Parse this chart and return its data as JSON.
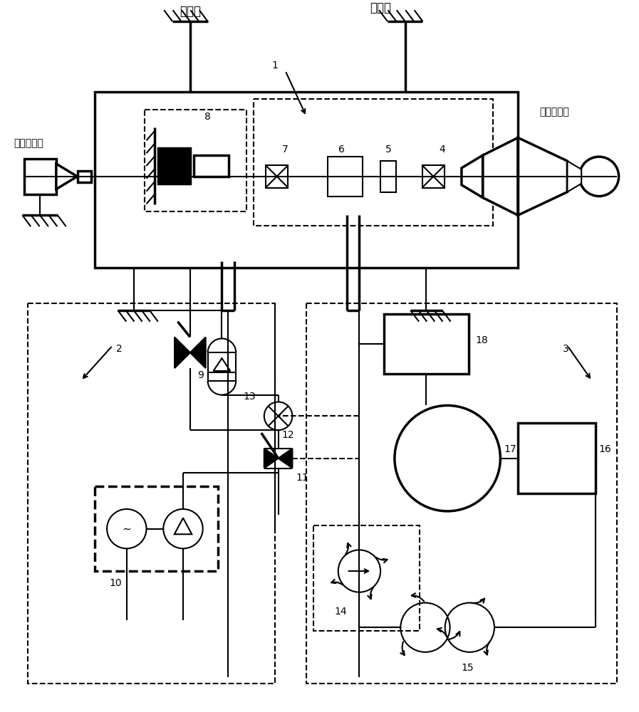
{
  "bg_color": "#ffffff",
  "line_color": "#000000",
  "fig_width": 8.97,
  "fig_height": 10.0,
  "labels": {
    "thrust_rack": "推力架",
    "spring": "弹簧片",
    "work_sensor": "工作传感器",
    "test_engine": "试验发动机",
    "n1": "1",
    "n2": "2",
    "n3": "3",
    "n4": "4",
    "n5": "5",
    "n6": "6",
    "n7": "7",
    "n8": "8",
    "n9": "9",
    "n10": "10",
    "n11": "11",
    "n12": "12",
    "n13": "13",
    "n14": "14",
    "n15": "15",
    "n16": "16",
    "n17": "17",
    "n18": "18"
  }
}
